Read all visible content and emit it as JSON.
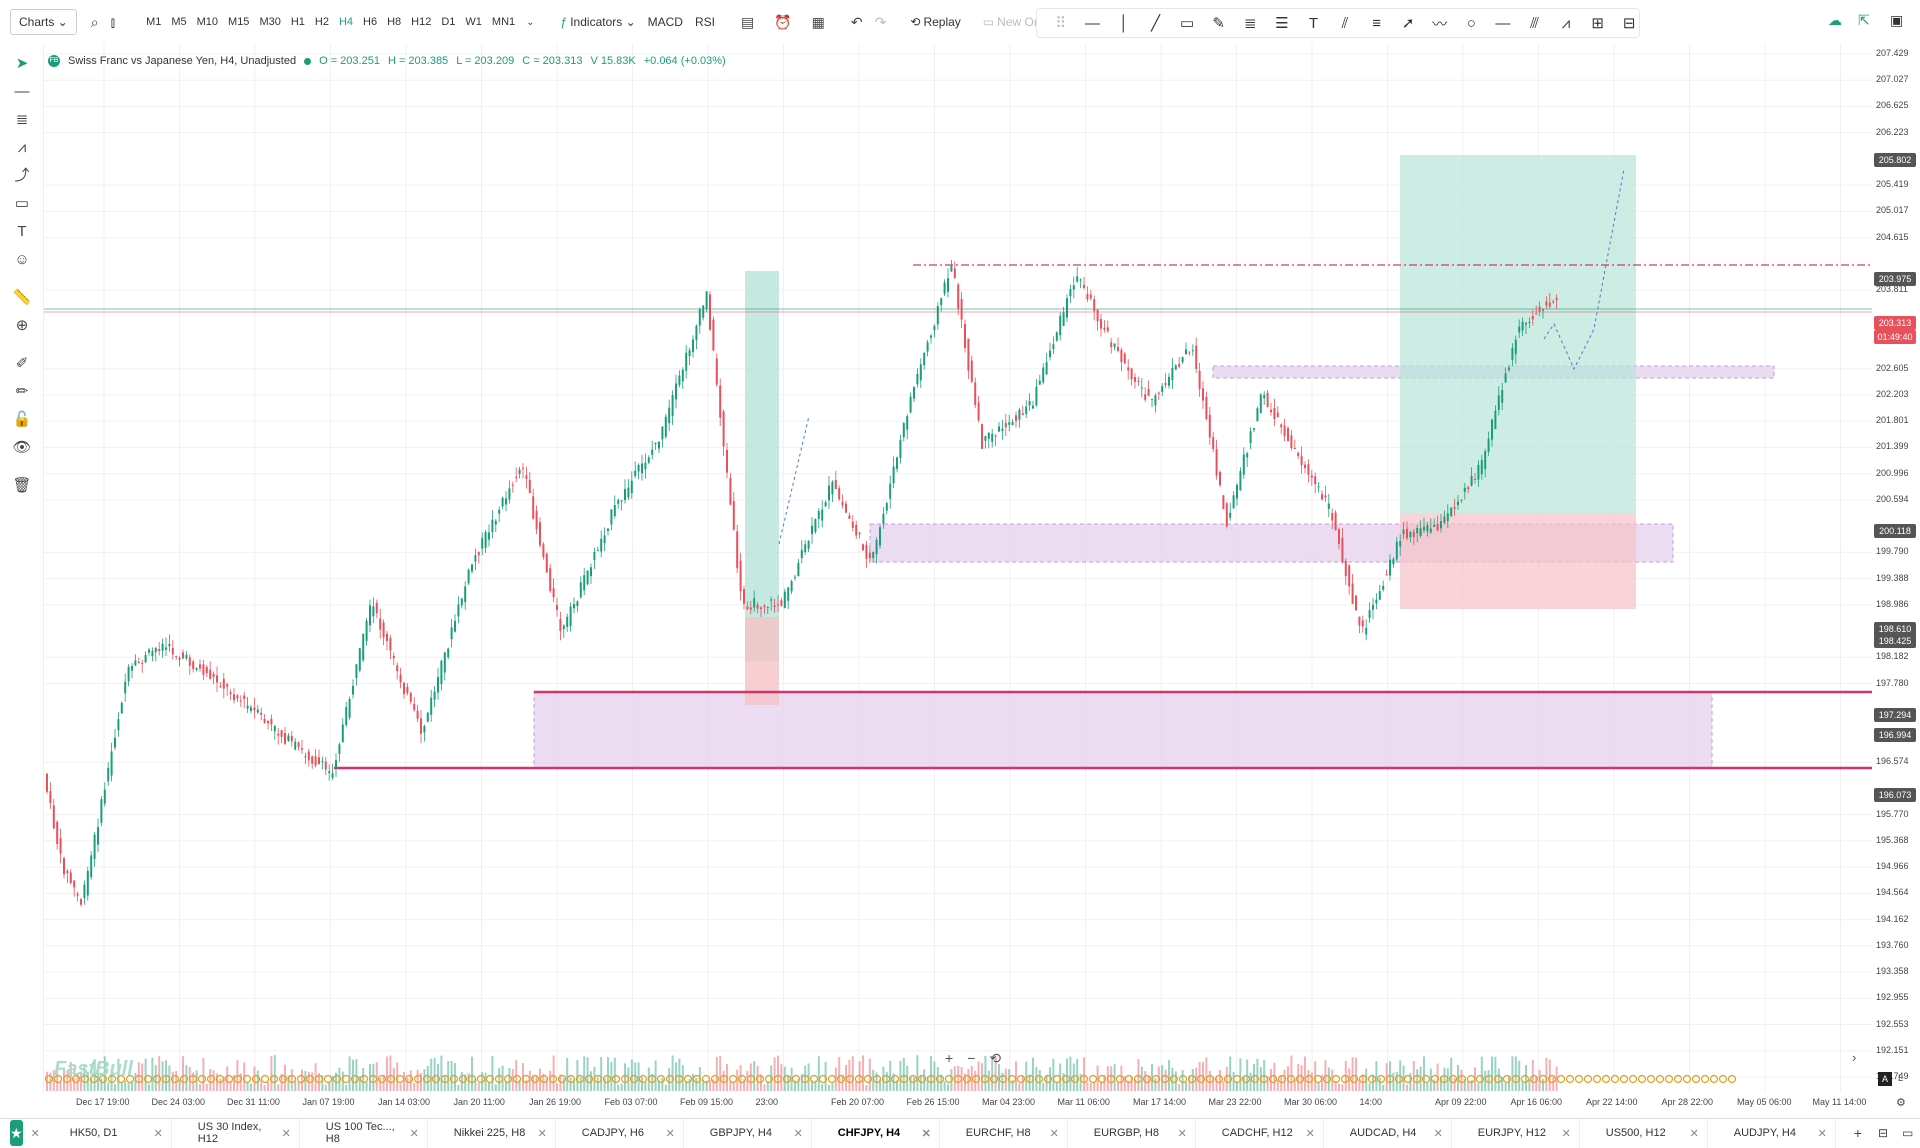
{
  "toolbar": {
    "charts_label": "Charts ⌄",
    "timeframes": [
      "M1",
      "M5",
      "M10",
      "M15",
      "M30",
      "H1",
      "H2",
      "H4",
      "H6",
      "H8",
      "H12",
      "D1",
      "W1",
      "MN1"
    ],
    "active_timeframe": "H4",
    "indicators_label": "Indicators ⌄",
    "macd_label": "MACD",
    "rsi_label": "RSI",
    "replay_label": "Replay",
    "new_order_label": "New Ord"
  },
  "symbol_info": {
    "title": "Swiss Franc vs Japanese Yen, H4, Unadjusted",
    "open": "O = 203.251",
    "high": "H = 203.385",
    "low": "L = 203.209",
    "close": "C = 203.313",
    "volume": "V 15.83K",
    "change": "+0.064 (+0.03%)"
  },
  "price_axis": {
    "labels": [
      "207.429",
      "207.027",
      "206.625",
      "206.223",
      "205.419",
      "205.017",
      "204.615",
      "203.811",
      "202.605",
      "202.203",
      "201.801",
      "201.399",
      "200.996",
      "200.594",
      "199.790",
      "199.388",
      "198.986",
      "198.182",
      "197.780",
      "196.574",
      "195.770",
      "195.368",
      "194.966",
      "194.564",
      "194.162",
      "193.760",
      "193.358",
      "192.955",
      "192.553",
      "192.151",
      "191.749"
    ],
    "tags": [
      {
        "price": "205.802",
        "color": "#555555"
      },
      {
        "price": "203.975",
        "color": "#555555"
      },
      {
        "price": "203.313",
        "color": "#e8505b"
      },
      {
        "price": "01:49:40",
        "color": "#e8505b"
      },
      {
        "price": "200.118",
        "color": "#555555"
      },
      {
        "price": "198.610",
        "color": "#555555"
      },
      {
        "price": "198.425",
        "color": "#555555"
      },
      {
        "price": "197.294",
        "color": "#555555"
      },
      {
        "price": "196.994",
        "color": "#555555"
      },
      {
        "price": "196.073",
        "color": "#555555"
      }
    ]
  },
  "time_axis": [
    "Dec 17 19:00",
    "Dec 24 03:00",
    "Dec 31 11:00",
    "Jan 07 19:00",
    "Jan 14 03:00",
    "Jan 20 11:00",
    "Jan 26 19:00",
    "Feb 03 07:00",
    "Feb 09 15:00",
    "23:00",
    "Feb 20 07:00",
    "Feb 26 15:00",
    "Mar 04 23:00",
    "Mar 11 06:00",
    "Mar 17 14:00",
    "Mar 23 22:00",
    "Mar 30 06:00",
    "14:00",
    "Apr 09 22:00",
    "Apr 16 06:00",
    "Apr 22 14:00",
    "Apr 28 22:00",
    "May 05 06:00",
    "May 11 14:00"
  ],
  "watermark": "FastBull",
  "tabs": [
    {
      "label": "HK50, D1"
    },
    {
      "label": "US 30 Index, H12"
    },
    {
      "label": "US 100 Tec..., H8"
    },
    {
      "label": "Nikkei 225, H8"
    },
    {
      "label": "CADJPY, H6"
    },
    {
      "label": "GBPJPY, H4"
    },
    {
      "label": "CHFJPY, H4",
      "active": true
    },
    {
      "label": "EURCHF, H8"
    },
    {
      "label": "EURGBP, H8"
    },
    {
      "label": "CADCHF, H12"
    },
    {
      "label": "AUDCAD, H4"
    },
    {
      "label": "EURJPY, H12"
    },
    {
      "label": "US500, H12"
    },
    {
      "label": "AUDJPY, H4"
    }
  ],
  "colors": {
    "up": "#1a9e7a",
    "down": "#e8505b",
    "accent": "#1a9e7a",
    "zone": "#e8d4f0",
    "level": "#d6336c"
  }
}
